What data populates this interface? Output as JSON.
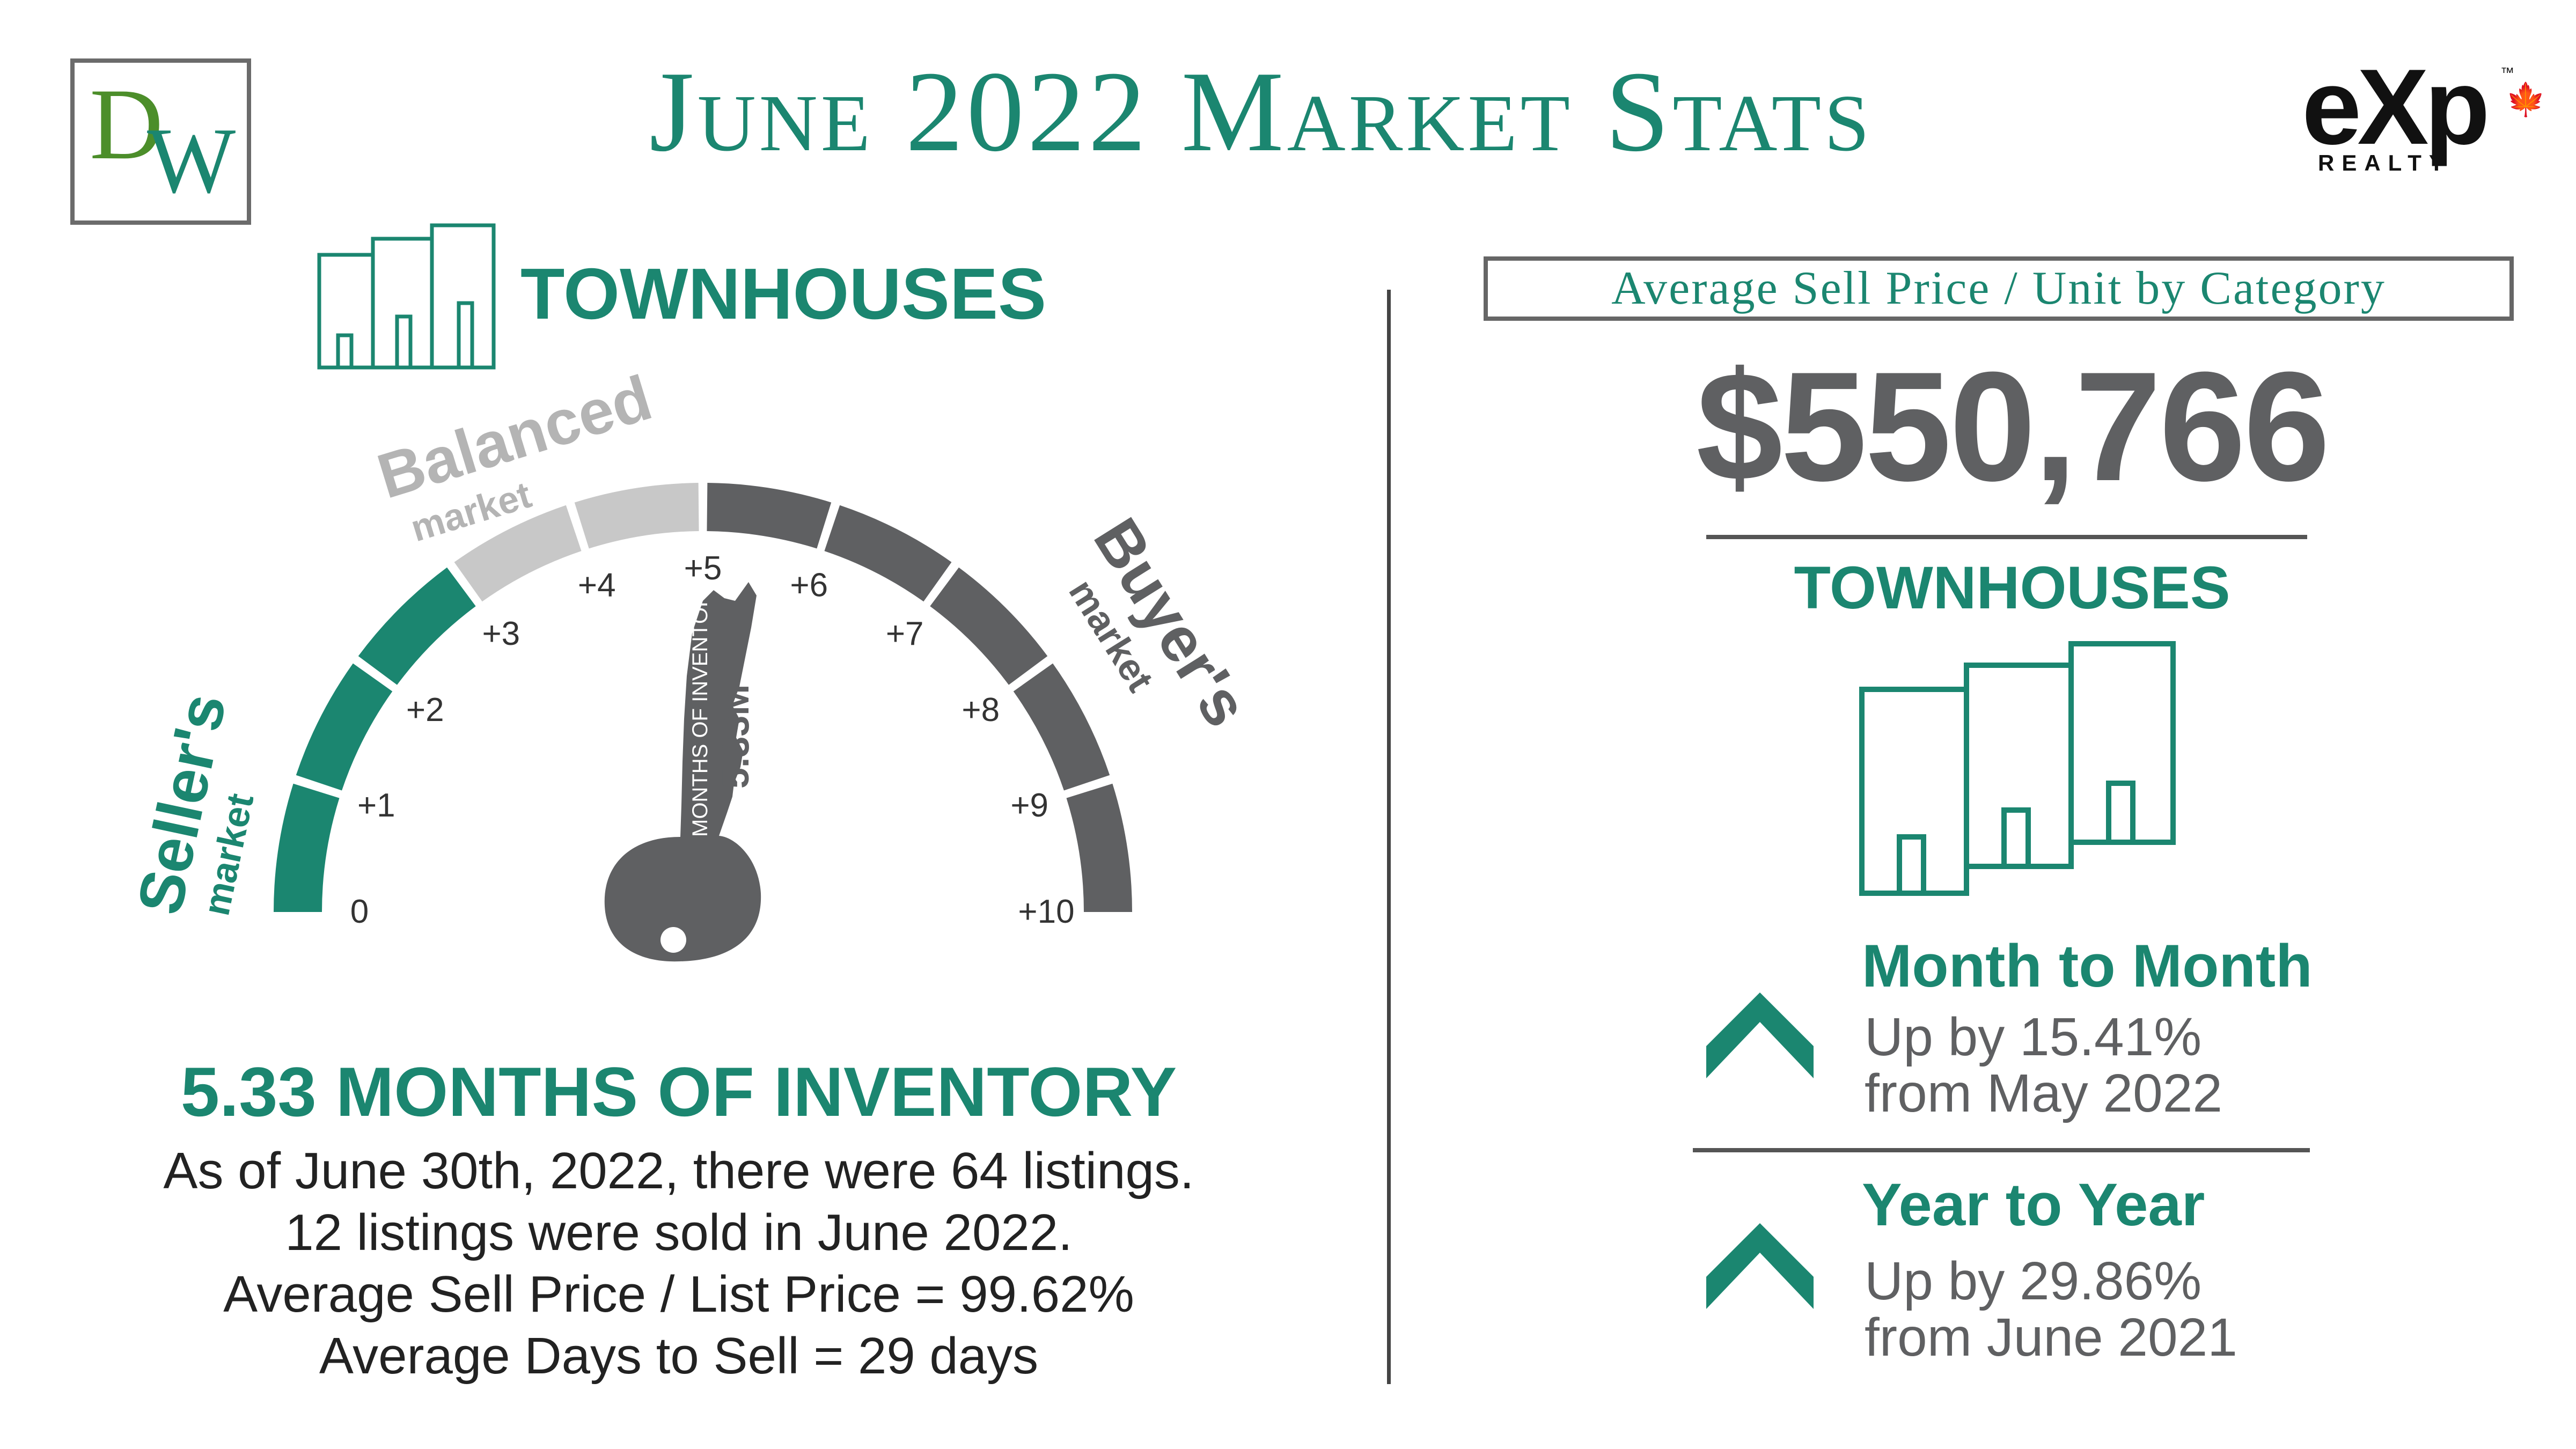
{
  "header": {
    "logo_letter_d": "D",
    "logo_letter_w": "W",
    "title": "June 2022 Market Stats",
    "brand_logo": "eXp",
    "brand_sub": "REALTY",
    "brand_tm": "™",
    "brand_leaf": "🍁"
  },
  "left": {
    "category": "TOWNHOUSES",
    "gauge": {
      "balanced_label": "Balanced",
      "balanced_sub": "market",
      "sellers_label": "Seller's",
      "sellers_sub": "market",
      "buyers_label": "Buyer's",
      "buyers_sub": "market",
      "ticks": [
        "0",
        "+1",
        "+2",
        "+3",
        "+4",
        "+5",
        "+6",
        "+7",
        "+8",
        "+9",
        "+10"
      ],
      "key_label": "MONTHS OF INVENTORY",
      "key_value": "5.33M",
      "value": 5.33,
      "min": 0,
      "max": 10,
      "colors": {
        "sellers": "#1b8670",
        "balanced": "#c8c8c8",
        "buyers": "#5f6062"
      }
    },
    "inventory_heading": "5.33 MONTHS OF INVENTORY",
    "stats": [
      "As of June 30th, 2022, there were 64 listings.",
      "12 listings were sold in June 2022.",
      "Average Sell Price / List Price = 99.62%",
      "Average Days to Sell = 29 days"
    ]
  },
  "right": {
    "category_box": "Average Sell Price / Unit by Category",
    "avg_price": "$550,766",
    "category": "TOWNHOUSES",
    "month_to_month": {
      "title": "Month to Month",
      "line1": "Up by 15.41%",
      "line2": "from May 2022",
      "icon": "chevron-up-icon"
    },
    "year_to_year": {
      "title": "Year to Year",
      "line1": "Up by 29.86%",
      "line2": "from June 2021",
      "icon": "chevron-up-icon"
    }
  },
  "colors": {
    "accent": "#1b8670",
    "gray": "#5f6062",
    "light_gray": "#c8c8c8"
  }
}
